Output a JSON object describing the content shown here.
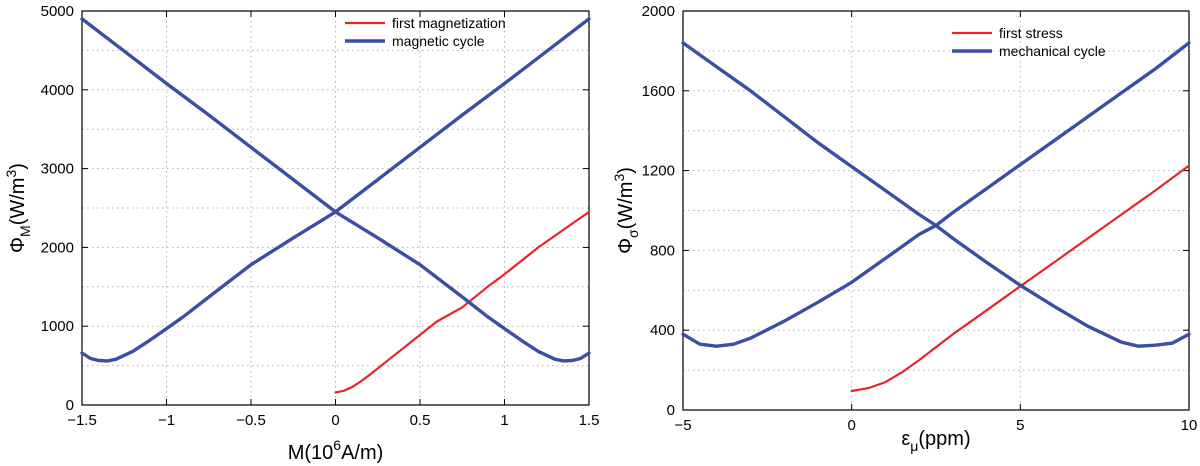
{
  "chart_data": [
    {
      "type": "line",
      "xlabel": {
        "main": "M(10",
        "sup": "6",
        "rest": "A/m)"
      },
      "ylabel": {
        "main": "Φ",
        "sub": "M",
        "rest": "(W/m",
        "sup": "3",
        "end": ")"
      },
      "xlim": [
        -1.5,
        1.5
      ],
      "ylim": [
        0,
        5000
      ],
      "xticks": [
        -1.5,
        -1,
        -0.5,
        0,
        0.5,
        1,
        1.5
      ],
      "xticklabels": [
        "−1.5",
        "−1",
        "−0.5",
        "0",
        "0.5",
        "1",
        "1.5"
      ],
      "yticks": [
        0,
        1000,
        2000,
        3000,
        4000,
        5000
      ],
      "yticklabels": [
        "0",
        "1000",
        "2000",
        "3000",
        "4000",
        "5000"
      ],
      "grid": true,
      "legend_position": "top-right",
      "series": [
        {
          "name": "first magnetization",
          "color": "#e8232a",
          "x": [
            0,
            0.05,
            0.1,
            0.15,
            0.2,
            0.3,
            0.4,
            0.5,
            0.6,
            0.75,
            0.9,
            1.0,
            1.2,
            1.5
          ],
          "y": [
            160,
            180,
            230,
            300,
            380,
            550,
            720,
            890,
            1060,
            1240,
            1500,
            1660,
            2000,
            2450
          ]
        },
        {
          "name": "magnetic cycle",
          "color": "#3a4fa3",
          "x": [
            -1.5,
            -1.45,
            -1.4,
            -1.35,
            -1.3,
            -1.2,
            -1.1,
            -1.0,
            -0.9,
            -0.75,
            -0.5,
            -0.25,
            0,
            0.25,
            0.5,
            0.75,
            1.0,
            1.25,
            1.5
          ],
          "y": [
            660,
            590,
            565,
            560,
            580,
            680,
            820,
            970,
            1120,
            1370,
            1780,
            2120,
            2450,
            2860,
            3270,
            3680,
            4080,
            4490,
            4900
          ]
        },
        {
          "name": "",
          "color": "#3a4fa3",
          "x": [
            -1.5,
            -1.25,
            -1.0,
            -0.75,
            -0.5,
            -0.25,
            0,
            0.25,
            0.5,
            0.75,
            0.9,
            1.0,
            1.1,
            1.2,
            1.3,
            1.35,
            1.4,
            1.45,
            1.5
          ],
          "y": [
            4900,
            4490,
            4080,
            3680,
            3270,
            2860,
            2450,
            2120,
            1780,
            1370,
            1120,
            970,
            820,
            680,
            580,
            560,
            565,
            590,
            660
          ]
        }
      ]
    },
    {
      "type": "line",
      "xlabel": {
        "main": "ε",
        "sub": "μ",
        "rest": "(ppm)"
      },
      "ylabel": {
        "main": "Φ",
        "sub": "σ",
        "rest": "(W/m",
        "sup": "3",
        "end": ")"
      },
      "xlim": [
        -5,
        10
      ],
      "ylim": [
        0,
        2000
      ],
      "xticks": [
        -5,
        0,
        5,
        10
      ],
      "xticklabels": [
        "−5",
        "0",
        "5",
        "10"
      ],
      "yticks": [
        0,
        400,
        800,
        1200,
        1600,
        2000
      ],
      "yticklabels": [
        "0",
        "400",
        "800",
        "1200",
        "1600",
        "2000"
      ],
      "grid": true,
      "legend_position": "top-right",
      "series": [
        {
          "name": "first stress",
          "color": "#e8232a",
          "x": [
            0,
            0.5,
            1,
            1.5,
            2,
            3,
            4,
            5,
            6,
            7,
            8,
            9,
            10
          ],
          "y": [
            95,
            110,
            140,
            190,
            250,
            380,
            500,
            620,
            740,
            860,
            980,
            1100,
            1225
          ]
        },
        {
          "name": "mechanical cycle",
          "color": "#3a4fa3",
          "x": [
            -5,
            -4.5,
            -4,
            -3.5,
            -3,
            -2,
            -1,
            0,
            1,
            2,
            2.5,
            3,
            4,
            5,
            6,
            7,
            8,
            9,
            10
          ],
          "y": [
            380,
            330,
            320,
            330,
            360,
            445,
            540,
            640,
            760,
            880,
            925,
            990,
            1110,
            1230,
            1350,
            1470,
            1590,
            1710,
            1840
          ]
        },
        {
          "name": "",
          "color": "#3a4fa3",
          "x": [
            -5,
            -4,
            -3,
            -2,
            -1,
            0,
            1,
            2,
            2.5,
            3,
            4,
            5,
            6,
            7,
            8,
            8.5,
            9,
            9.5,
            10
          ],
          "y": [
            1840,
            1720,
            1600,
            1470,
            1340,
            1220,
            1100,
            980,
            925,
            860,
            740,
            625,
            520,
            420,
            340,
            320,
            325,
            335,
            380
          ]
        }
      ]
    }
  ]
}
